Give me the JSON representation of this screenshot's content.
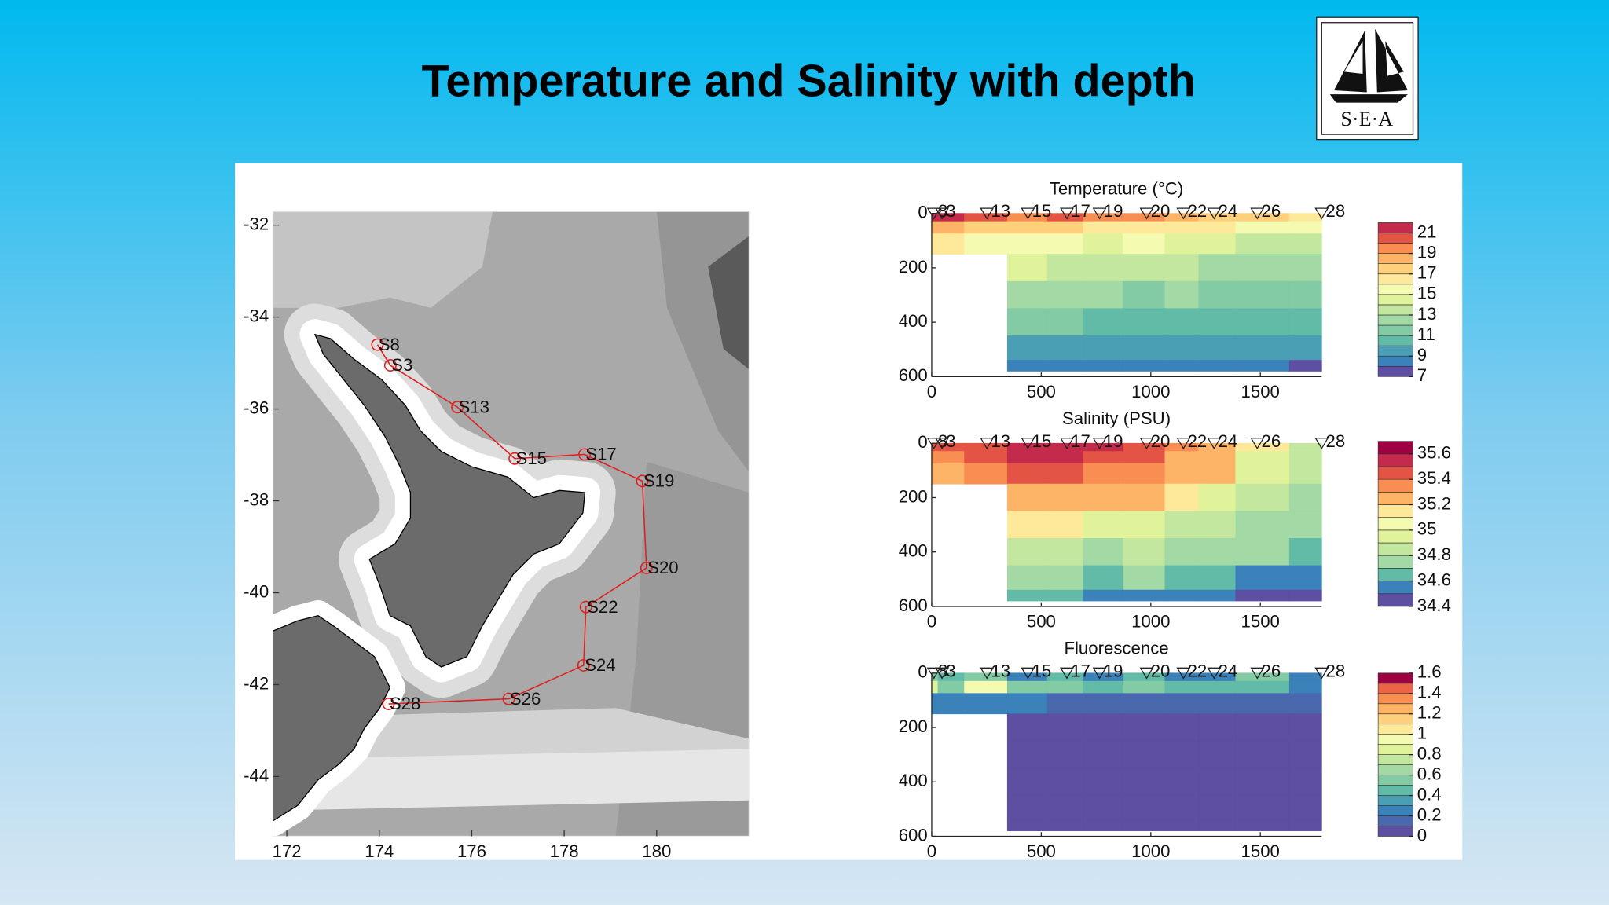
{
  "title": "Temperature and Salinity with depth",
  "logo": "S·E·A",
  "chart_data": [
    {
      "type": "map",
      "xlim": [
        171.7,
        182
      ],
      "ylim": [
        -45.3,
        -31.7
      ],
      "xticks": [
        172,
        174,
        176,
        178,
        180
      ],
      "yticks": [
        -32,
        -34,
        -36,
        -38,
        -40,
        -42,
        -44
      ],
      "color": "#e02020",
      "labels": [
        "S8",
        "S3",
        "S13",
        "S15",
        "S17",
        "S19",
        "S20",
        "S22",
        "S24",
        "S26",
        "S28"
      ],
      "x": [
        173.96,
        174.24,
        175.69,
        176.93,
        178.44,
        179.69,
        179.78,
        178.47,
        178.42,
        176.8,
        174.2
      ],
      "y": [
        -34.6,
        -35.05,
        -35.96,
        -37.08,
        -36.99,
        -37.57,
        -39.46,
        -40.31,
        -41.58,
        -42.31,
        -42.42
      ]
    },
    {
      "type": "section",
      "title": "Temperature (°C)",
      "xlim": [
        0,
        1780
      ],
      "ylim": [
        600,
        0
      ],
      "xticks": [
        0,
        500,
        1000,
        1500
      ],
      "yticks": [
        0,
        200,
        400,
        600
      ],
      "stations": [
        "8",
        "3",
        "13",
        "15",
        "17",
        "19",
        "20",
        "22",
        "24",
        "26",
        "28"
      ],
      "x": [
        10,
        47,
        252,
        439,
        617,
        766,
        981,
        1149,
        1289,
        1486,
        1780
      ],
      "depth": [
        10,
        50,
        100,
        200,
        300,
        400,
        500,
        580
      ],
      "z": [
        [
          21,
          21,
          20,
          19,
          20,
          19,
          19,
          18,
          17,
          17,
          16
        ],
        [
          18,
          18,
          17,
          17,
          17,
          16,
          16,
          16,
          16,
          15,
          15
        ],
        [
          16,
          16,
          15,
          15,
          15,
          14.5,
          15,
          14,
          14,
          13.5,
          13
        ],
        [
          null,
          null,
          null,
          14,
          13.5,
          13,
          13,
          13,
          12.5,
          12,
          12
        ],
        [
          null,
          null,
          null,
          12.5,
          12.5,
          12,
          11.5,
          12,
          11.5,
          11,
          11
        ],
        [
          null,
          null,
          null,
          11,
          11,
          10.5,
          10,
          10.5,
          10.5,
          10,
          10
        ],
        [
          null,
          null,
          null,
          9.5,
          9.5,
          9,
          9,
          9,
          9.5,
          9,
          9
        ],
        [
          null,
          null,
          null,
          8.5,
          8.5,
          8,
          8,
          8,
          8.5,
          8,
          7.5
        ]
      ],
      "clim": [
        7,
        22
      ],
      "cticks": [
        7,
        9,
        11,
        13,
        15,
        17,
        19,
        21
      ],
      "colors": [
        "#5e4fa2",
        "#3a82b9",
        "#4b9fb4",
        "#62bba6",
        "#83cba5",
        "#a2d9a4",
        "#c3e79e",
        "#e0f39a",
        "#f4fab0",
        "#fee99a",
        "#fed07c",
        "#fdb466",
        "#f98e52",
        "#e45444",
        "#c42a4c"
      ]
    },
    {
      "type": "section",
      "title": "Salinity (PSU)",
      "xlim": [
        0,
        1780
      ],
      "ylim": [
        600,
        0
      ],
      "xticks": [
        0,
        500,
        1000,
        1500
      ],
      "yticks": [
        0,
        200,
        400,
        600
      ],
      "stations": [
        "8",
        "3",
        "13",
        "15",
        "17",
        "19",
        "20",
        "22",
        "24",
        "26",
        "28"
      ],
      "x": [
        10,
        47,
        252,
        439,
        617,
        766,
        981,
        1149,
        1289,
        1486,
        1780
      ],
      "depth": [
        10,
        50,
        100,
        200,
        300,
        400,
        500,
        580
      ],
      "z": [
        [
          35.5,
          35.5,
          35.5,
          35.6,
          35.6,
          35.6,
          35.5,
          35.4,
          35.3,
          35.1,
          34.9
        ],
        [
          35.4,
          35.4,
          35.5,
          35.6,
          35.6,
          35.5,
          35.5,
          35.3,
          35.2,
          35.0,
          34.9
        ],
        [
          35.3,
          35.3,
          35.4,
          35.5,
          35.5,
          35.4,
          35.4,
          35.3,
          35.2,
          35.0,
          34.9
        ],
        [
          null,
          null,
          null,
          35.3,
          35.3,
          35.2,
          35.2,
          35.1,
          35.0,
          34.9,
          34.8
        ],
        [
          null,
          null,
          null,
          35.1,
          35.1,
          35.0,
          35.0,
          34.9,
          34.9,
          34.8,
          34.7
        ],
        [
          null,
          null,
          null,
          34.9,
          34.9,
          34.8,
          34.9,
          34.8,
          34.7,
          34.7,
          34.6
        ],
        [
          null,
          null,
          null,
          34.7,
          34.7,
          34.6,
          34.7,
          34.6,
          34.6,
          34.5,
          34.5
        ],
        [
          null,
          null,
          null,
          34.6,
          34.6,
          34.5,
          34.5,
          34.5,
          34.5,
          34.4,
          34.4
        ]
      ],
      "clim": [
        34.4,
        35.7
      ],
      "cticks": [
        34.4,
        34.6,
        34.8,
        35,
        35.2,
        35.4,
        35.6
      ],
      "colors": [
        "#5e4fa2",
        "#3a82b9",
        "#62bba6",
        "#a2d9a4",
        "#c3e79e",
        "#e0f39a",
        "#f4fab0",
        "#fee99a",
        "#fdb466",
        "#f98e52",
        "#e45444",
        "#c42a4c",
        "#9e0142"
      ]
    },
    {
      "type": "section",
      "title": "Fluorescence",
      "xlim": [
        0,
        1780
      ],
      "ylim": [
        600,
        0
      ],
      "xticks": [
        0,
        500,
        1000,
        1500
      ],
      "yticks": [
        0,
        200,
        400,
        600
      ],
      "stations": [
        "8",
        "3",
        "13",
        "15",
        "17",
        "19",
        "20",
        "22",
        "24",
        "26",
        "28"
      ],
      "x": [
        10,
        47,
        252,
        439,
        617,
        766,
        981,
        1149,
        1289,
        1486,
        1780
      ],
      "depth": [
        10,
        50,
        100,
        200,
        300,
        400,
        500,
        580
      ],
      "z": [
        [
          0.6,
          0.4,
          0.5,
          0.3,
          0.4,
          0.3,
          0.4,
          0.3,
          0.3,
          0.5,
          0.3
        ],
        [
          0.8,
          0.5,
          0.9,
          0.6,
          0.6,
          0.4,
          0.5,
          0.4,
          0.4,
          0.4,
          0.3
        ],
        [
          0.3,
          0.2,
          0.2,
          0.2,
          0.1,
          0.1,
          0.1,
          0.1,
          0.1,
          0.1,
          0.1
        ],
        [
          null,
          null,
          null,
          0,
          0,
          0,
          0,
          0,
          0,
          0,
          0
        ],
        [
          null,
          null,
          null,
          0,
          0,
          0,
          0,
          0,
          0,
          0,
          0
        ],
        [
          null,
          null,
          null,
          0,
          0,
          0,
          0,
          0,
          0,
          0,
          0
        ],
        [
          null,
          null,
          null,
          0,
          0,
          0,
          0,
          0,
          0,
          0,
          0
        ],
        [
          null,
          null,
          null,
          0,
          0,
          0,
          0,
          0,
          0,
          0,
          0
        ]
      ],
      "clim": [
        0,
        1.6
      ],
      "cticks": [
        0,
        0.2,
        0.4,
        0.6,
        0.8,
        1,
        1.2,
        1.4,
        1.6
      ],
      "colors": [
        "#5e4fa2",
        "#4a68ae",
        "#3a82b9",
        "#4b9fb4",
        "#62bba6",
        "#83cba5",
        "#a2d9a4",
        "#c3e79e",
        "#e0f39a",
        "#f4fab0",
        "#fee99a",
        "#fed07c",
        "#fdb466",
        "#f98e52",
        "#ec6445",
        "#9e0142"
      ]
    }
  ]
}
